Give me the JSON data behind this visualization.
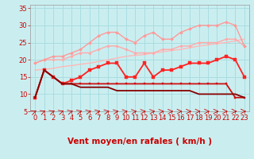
{
  "xlabel": "Vent moyen/en rafales ( km/h )",
  "xlim": [
    -0.5,
    23.5
  ],
  "ylim": [
    5,
    36
  ],
  "yticks": [
    5,
    10,
    15,
    20,
    25,
    30,
    35
  ],
  "xticks": [
    0,
    1,
    2,
    3,
    4,
    5,
    6,
    7,
    8,
    9,
    10,
    11,
    12,
    13,
    14,
    15,
    16,
    17,
    18,
    19,
    20,
    21,
    22,
    23
  ],
  "bg": "#caeef0",
  "grid_color": "#a8dde0",
  "lines": [
    {
      "note": "lightest pink - straight rising line, no markers",
      "x": [
        0,
        1,
        2,
        3,
        4,
        5,
        6,
        7,
        8,
        9,
        10,
        11,
        12,
        13,
        14,
        15,
        16,
        17,
        18,
        19,
        20,
        21,
        22,
        23
      ],
      "y": [
        17,
        17.2,
        17.5,
        18,
        18.3,
        18.7,
        19,
        19.5,
        20,
        20.5,
        21,
        21.3,
        21.5,
        22,
        22.3,
        22.7,
        23,
        23.5,
        24,
        24.3,
        24.7,
        25,
        25.5,
        26
      ],
      "color": "#ffb8b8",
      "lw": 1.0,
      "marker": null
    },
    {
      "note": "second pink - rising line with small diamond markers",
      "x": [
        0,
        1,
        2,
        3,
        4,
        5,
        6,
        7,
        8,
        9,
        10,
        11,
        12,
        13,
        14,
        15,
        16,
        17,
        18,
        19,
        20,
        21,
        22,
        23
      ],
      "y": [
        19,
        20,
        20,
        20,
        21,
        22,
        22,
        23,
        24,
        24,
        23,
        22,
        22,
        22,
        23,
        23,
        24,
        24,
        25,
        25,
        25,
        26,
        26,
        24
      ],
      "color": "#ffaaaa",
      "lw": 1.0,
      "marker": "D",
      "ms": 1.8
    },
    {
      "note": "third pink - more volatile with diamond markers, peaks ~31 at x=21",
      "x": [
        0,
        1,
        2,
        3,
        4,
        5,
        6,
        7,
        8,
        9,
        10,
        11,
        12,
        13,
        14,
        15,
        16,
        17,
        18,
        19,
        20,
        21,
        22,
        23
      ],
      "y": [
        19,
        20,
        21,
        21,
        22,
        23,
        25,
        27,
        28,
        28,
        26,
        25,
        27,
        28,
        26,
        26,
        28,
        29,
        30,
        30,
        30,
        31,
        30,
        24
      ],
      "color": "#ff9999",
      "lw": 1.0,
      "marker": "D",
      "ms": 2.0
    },
    {
      "note": "bright red - volatile with square markers, peaks at x=21",
      "x": [
        0,
        1,
        2,
        3,
        4,
        5,
        6,
        7,
        8,
        9,
        10,
        11,
        12,
        13,
        14,
        15,
        16,
        17,
        18,
        19,
        20,
        21,
        22,
        23
      ],
      "y": [
        9,
        17,
        15,
        13,
        14,
        15,
        17,
        18,
        19,
        19,
        15,
        15,
        19,
        15,
        17,
        17,
        18,
        19,
        19,
        19,
        20,
        21,
        20,
        15
      ],
      "color": "#ff2222",
      "lw": 1.3,
      "marker": "s",
      "ms": 2.5
    },
    {
      "note": "medium red - starts high, drops to ~13, ends ~9",
      "x": [
        0,
        1,
        2,
        3,
        4,
        5,
        6,
        7,
        8,
        9,
        10,
        11,
        12,
        13,
        14,
        15,
        16,
        17,
        18,
        19,
        20,
        21,
        22,
        23
      ],
      "y": [
        9,
        17,
        15,
        13,
        13,
        13,
        13,
        13,
        13,
        13,
        13,
        13,
        13,
        13,
        13,
        13,
        13,
        13,
        13,
        13,
        13,
        13,
        9,
        9
      ],
      "color": "#cc1111",
      "lw": 1.3,
      "marker": "s",
      "ms": 2.0
    },
    {
      "note": "darkest red - declines gently from 17 to 9",
      "x": [
        0,
        1,
        2,
        3,
        4,
        5,
        6,
        7,
        8,
        9,
        10,
        11,
        12,
        13,
        14,
        15,
        16,
        17,
        18,
        19,
        20,
        21,
        22,
        23
      ],
      "y": [
        9,
        17,
        15,
        13,
        13,
        12,
        12,
        12,
        12,
        11,
        11,
        11,
        11,
        11,
        11,
        11,
        11,
        11,
        10,
        10,
        10,
        10,
        10,
        9
      ],
      "color": "#880000",
      "lw": 1.3,
      "marker": null
    }
  ],
  "arrow_angles": [
    42,
    40,
    38,
    35,
    32,
    30,
    28,
    25,
    22,
    20,
    18,
    15,
    13,
    12,
    10,
    8,
    6,
    5,
    4,
    3,
    2,
    1,
    0,
    0
  ],
  "xlabel_color": "#cc0000",
  "xlabel_fontsize": 7.5,
  "tick_color": "#cc0000",
  "tick_fontsize": 6
}
